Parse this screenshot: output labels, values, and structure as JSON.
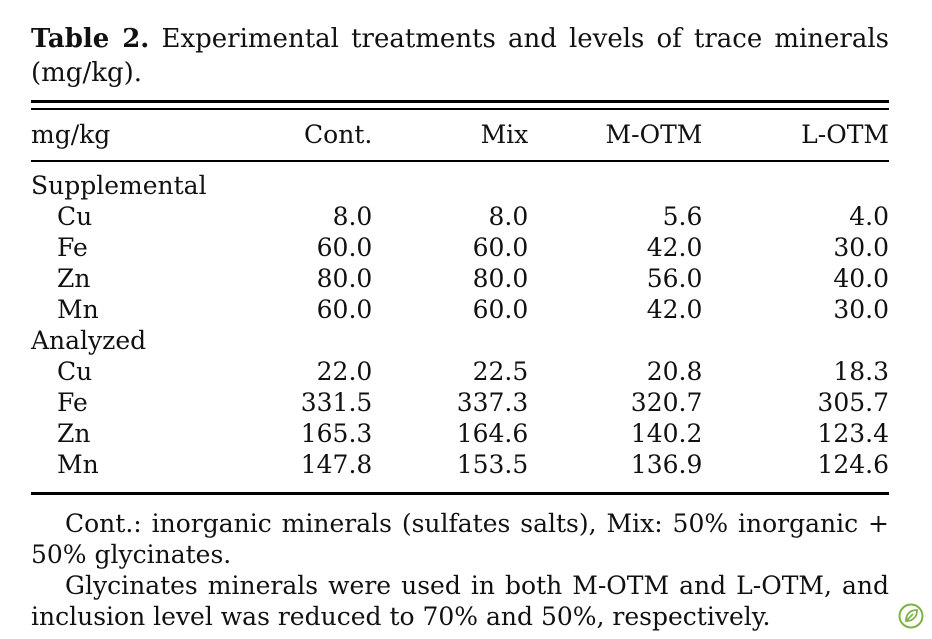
{
  "caption": {
    "label": "Table 2.",
    "text": "Experimental treatments and levels of trace minerals (mg/kg)."
  },
  "table": {
    "headers": [
      "mg/kg",
      "Cont.",
      "Mix",
      "M-OTM",
      "L-OTM"
    ],
    "groups": [
      {
        "label": "Supplemental",
        "rows": [
          {
            "name": "Cu",
            "values": [
              "8.0",
              "8.0",
              "5.6",
              "4.0"
            ]
          },
          {
            "name": "Fe",
            "values": [
              "60.0",
              "60.0",
              "42.0",
              "30.0"
            ]
          },
          {
            "name": "Zn",
            "values": [
              "80.0",
              "80.0",
              "56.0",
              "40.0"
            ]
          },
          {
            "name": "Mn",
            "values": [
              "60.0",
              "60.0",
              "42.0",
              "30.0"
            ]
          }
        ]
      },
      {
        "label": "Analyzed",
        "rows": [
          {
            "name": "Cu",
            "values": [
              "22.0",
              "22.5",
              "20.8",
              "18.3"
            ]
          },
          {
            "name": "Fe",
            "values": [
              "331.5",
              "337.3",
              "320.7",
              "305.7"
            ]
          },
          {
            "name": "Zn",
            "values": [
              "165.3",
              "164.6",
              "140.2",
              "123.4"
            ]
          },
          {
            "name": "Mn",
            "values": [
              "147.8",
              "153.5",
              "136.9",
              "124.6"
            ]
          }
        ]
      }
    ]
  },
  "notes": [
    "Cont.: inorganic minerals (sulfates salts), Mix: 50% inorganic + 50% glycinates.",
    "Glycinates minerals were used in both M-OTM and L-OTM, and inclusion level was reduced to 70% and 50%, respectively."
  ],
  "seal": {
    "icon": "leaf-seal-icon",
    "color": "#7cb342"
  }
}
